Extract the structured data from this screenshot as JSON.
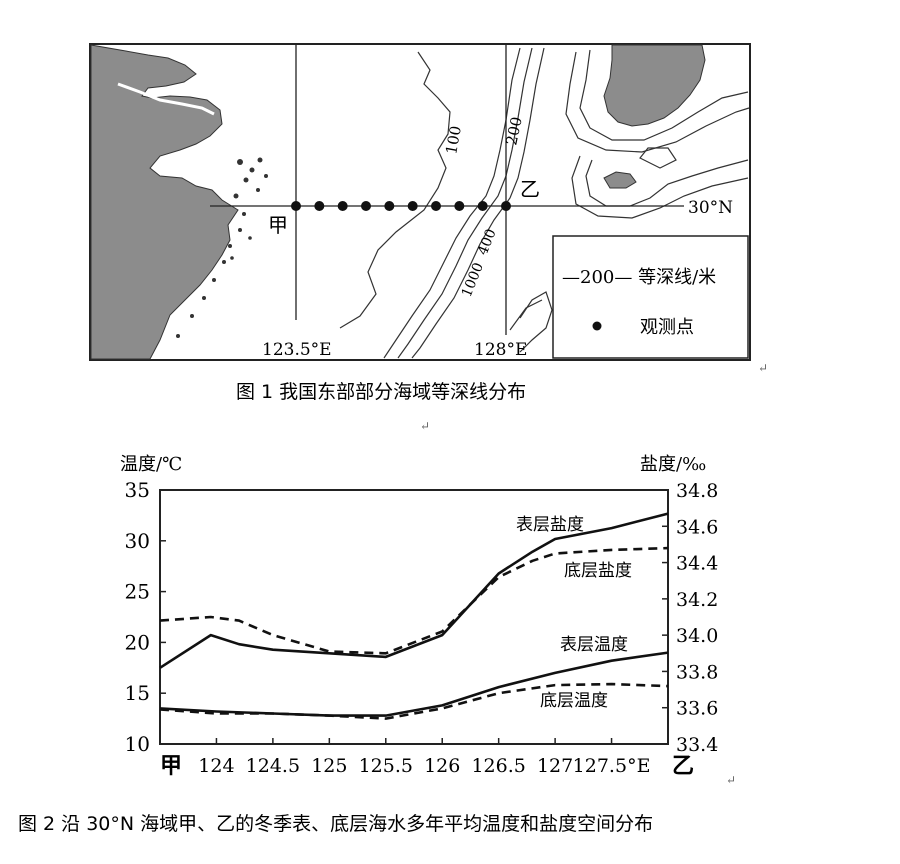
{
  "figure1": {
    "lat_label": "30°N",
    "lon_labels": [
      "123.5°E",
      "128°E"
    ],
    "depth_labels": [
      "100",
      "200",
      "1000",
      "400"
    ],
    "point_start": "甲",
    "point_end": "乙",
    "legend": {
      "isobath": "—200— 等深线/米",
      "station": "观测点"
    },
    "caption": "图 1    我国东部部分海域等深线分布",
    "colors": {
      "land": "#8c8c8c",
      "sea": "#ffffff",
      "lines": "#222222"
    }
  },
  "figure2": {
    "caption": "图 2    沿 30°N 海域甲、乙的冬季表、底层海水多年平均温度和盐度空间分布",
    "left_axis_label": "温度/℃",
    "right_axis_label": "盐度/‰",
    "x_start_label": "甲",
    "x_end_label": "乙"
  },
  "chart_data": {
    "type": "line",
    "x_tick_labels": [
      "124",
      "124.5",
      "125",
      "125.5",
      "126",
      "126.5",
      "127",
      "127.5°E"
    ],
    "x_ticks": [
      124,
      124.5,
      125,
      125.5,
      126,
      126.5,
      127,
      127.5
    ],
    "xlim": [
      123.5,
      128
    ],
    "y_left": {
      "label": "温度/℃",
      "ticks": [
        10,
        15,
        20,
        25,
        30,
        35
      ],
      "lim": [
        10,
        35
      ]
    },
    "y_right": {
      "label": "盐度/‰",
      "ticks": [
        33.4,
        33.6,
        33.8,
        34.0,
        34.2,
        34.4,
        34.6,
        34.8
      ],
      "lim": [
        33.4,
        34.8
      ]
    },
    "series": [
      {
        "name": "表层盐度",
        "axis": "right",
        "style": "solid",
        "x": [
          123.5,
          123.95,
          124.2,
          124.5,
          125.0,
          125.5,
          126.0,
          126.5,
          126.8,
          127.0,
          127.5,
          128.0
        ],
        "y": [
          33.82,
          34.0,
          33.95,
          33.92,
          33.9,
          33.88,
          34.0,
          34.34,
          34.46,
          34.53,
          34.59,
          34.67
        ]
      },
      {
        "name": "底层盐度",
        "axis": "right",
        "style": "dashed",
        "x": [
          123.5,
          123.95,
          124.2,
          124.5,
          125.0,
          125.5,
          126.0,
          126.5,
          126.8,
          127.0,
          127.5,
          128.0
        ],
        "y": [
          34.08,
          34.1,
          34.08,
          34.0,
          33.91,
          33.9,
          34.02,
          34.32,
          34.41,
          34.45,
          34.47,
          34.48
        ]
      },
      {
        "name": "表层温度",
        "axis": "left",
        "style": "solid",
        "x": [
          123.5,
          124.0,
          124.5,
          125.0,
          125.5,
          126.0,
          126.5,
          127.0,
          127.5,
          128.0
        ],
        "y": [
          13.5,
          13.2,
          13.0,
          12.8,
          12.8,
          13.8,
          15.6,
          17.0,
          18.2,
          19.0
        ]
      },
      {
        "name": "底层温度",
        "axis": "left",
        "style": "dashed",
        "x": [
          123.5,
          124.0,
          124.5,
          125.0,
          125.5,
          126.0,
          126.5,
          127.0,
          127.5,
          128.0
        ],
        "y": [
          13.4,
          13.0,
          13.0,
          12.8,
          12.5,
          13.5,
          15.0,
          15.8,
          15.9,
          15.7
        ]
      }
    ],
    "annotations": [
      "表层盐度",
      "底层盐度",
      "表层温度",
      "底层温度"
    ],
    "grid": false
  }
}
